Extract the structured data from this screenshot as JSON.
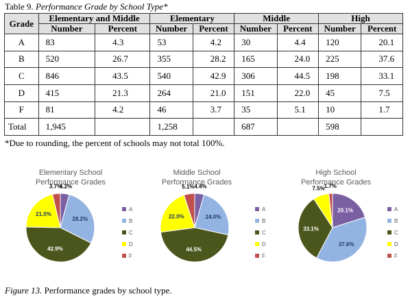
{
  "caption": {
    "prefix": "Table 9.",
    "title": "Performance Grade by School Type*"
  },
  "table": {
    "grade_header": "Grade",
    "groups": [
      "Elementary and Middle",
      "Elementary",
      "Middle",
      "High"
    ],
    "subheaders": [
      "Number",
      "Percent"
    ],
    "rows": [
      {
        "grade": "A",
        "cells": [
          "83",
          "4.3",
          "53",
          "4.2",
          "30",
          "4.4",
          "120",
          "20.1"
        ]
      },
      {
        "grade": "B",
        "cells": [
          "520",
          "26.7",
          "355",
          "28.2",
          "165",
          "24.0",
          "225",
          "37.6"
        ]
      },
      {
        "grade": "C",
        "cells": [
          "846",
          "43.5",
          "540",
          "42.9",
          "306",
          "44.5",
          "198",
          "33.1"
        ]
      },
      {
        "grade": "D",
        "cells": [
          "415",
          "21.3",
          "264",
          "21.0",
          "151",
          "22.0",
          "45",
          "7.5"
        ]
      },
      {
        "grade": "F",
        "cells": [
          "81",
          "4.2",
          "46",
          "3.7",
          "35",
          "5.1",
          "10",
          "1.7"
        ]
      },
      {
        "grade": "Total",
        "cells": [
          "1,945",
          "",
          "1,258",
          "",
          "687",
          "",
          "598",
          ""
        ]
      }
    ]
  },
  "footnote": "*Due to rounding, the percent of schools may not total 100%.",
  "figure_caption": {
    "prefix": "Figure 13.",
    "text": "Performance grades by school type."
  },
  "chart_data": [
    {
      "type": "pie",
      "title": "Elementary School Performance Grades",
      "title_lines": [
        "Elementary School",
        "Performance Grades"
      ],
      "categories": [
        "A",
        "B",
        "C",
        "D",
        "F"
      ],
      "values": [
        4.2,
        28.2,
        42.9,
        21.0,
        3.7
      ],
      "labels": [
        "4.2%",
        "28.2%",
        "42.9%",
        "21.0%",
        "3.7%"
      ],
      "colors": [
        "#7b5fa3",
        "#93b4e2",
        "#4a561c",
        "#ffff00",
        "#c0504d"
      ],
      "legend": "right"
    },
    {
      "type": "pie",
      "title": "Middle School Performance Grades",
      "title_lines": [
        "Middle School",
        "Performance Grades"
      ],
      "categories": [
        "A",
        "B",
        "C",
        "D",
        "F"
      ],
      "values": [
        4.4,
        24.0,
        44.5,
        22.0,
        5.1
      ],
      "labels": [
        "4.4%",
        "24.0%",
        "44.5%",
        "22.0%",
        "5.1%"
      ],
      "colors": [
        "#7b5fa3",
        "#93b4e2",
        "#4a561c",
        "#ffff00",
        "#c0504d"
      ],
      "legend": "right"
    },
    {
      "type": "pie",
      "title": "High School Performance Grades",
      "title_lines": [
        "High School",
        "Performance Grades"
      ],
      "categories": [
        "A",
        "B",
        "C",
        "D",
        "F"
      ],
      "values": [
        20.1,
        37.6,
        33.1,
        7.5,
        1.7
      ],
      "labels": [
        "20.1%",
        "37.6%",
        "33.1%",
        "7.5%",
        "1.7%"
      ],
      "colors": [
        "#7b5fa3",
        "#93b4e2",
        "#4a561c",
        "#ffff00",
        "#c0504d"
      ],
      "legend": "right"
    }
  ]
}
